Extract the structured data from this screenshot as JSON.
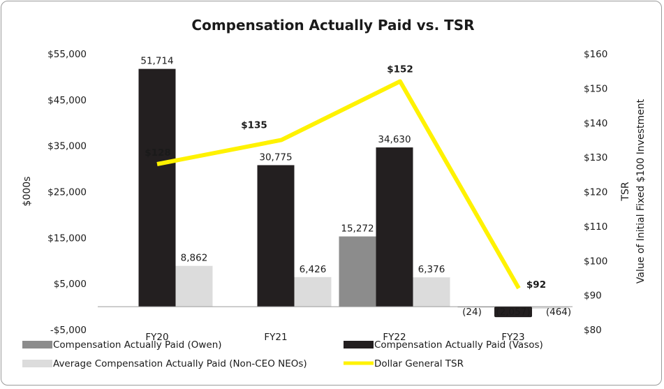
{
  "chart_data": {
    "type": "bar",
    "title": "Compensation Actually Paid vs. TSR",
    "categories": [
      "FY20",
      "FY21",
      "FY22",
      "FY23"
    ],
    "ylabel": "$000s",
    "y2label_line1": "TSR",
    "y2label_line2": "Value of Initial Fixed $100 Investment",
    "ylim": [
      -5000,
      55000
    ],
    "y_ticks": [
      55000,
      45000,
      35000,
      25000,
      15000,
      5000,
      -5000
    ],
    "y_tick_labels": [
      "$55,000",
      "$45,000",
      "$35,000",
      "$25,000",
      "$15,000",
      "$5,000",
      "-$5,000"
    ],
    "y2lim": [
      80,
      160
    ],
    "y2_ticks": [
      160,
      150,
      140,
      130,
      120,
      110,
      100,
      90,
      80
    ],
    "y2_tick_labels": [
      "$160",
      "$150",
      "$140",
      "$130",
      "$120",
      "$110",
      "$100",
      "$90",
      "$80"
    ],
    "grid": false,
    "series": [
      {
        "name": "Compensation Actually Paid (Owen)",
        "color": "#8c8c8c",
        "values": [
          null,
          null,
          15272,
          -24
        ],
        "labels": [
          "",
          "",
          "15,272",
          "(24)"
        ]
      },
      {
        "name": "Compensation Actually Paid (Vasos)",
        "color": "#231f20",
        "values": [
          51714,
          30775,
          34630,
          -2057
        ],
        "labels": [
          "51,714",
          "30,775",
          "34,630",
          "(2,057)"
        ]
      },
      {
        "name": "Average Compensation Actually Paid (Non-CEO NEOs)",
        "color": "#dcdcdc",
        "values": [
          8862,
          6426,
          6376,
          -464
        ],
        "labels": [
          "8,862",
          "6,426",
          "6,376",
          "(464)"
        ]
      }
    ],
    "line_series": {
      "name": "Dollar General TSR",
      "color": "#fff200",
      "axis": "right",
      "values": [
        128,
        135,
        152,
        92
      ],
      "labels": [
        "$128",
        "$135",
        "$152",
        "$92"
      ],
      "label_colors": [
        "#fff200",
        "#8c8c8c",
        "#8c8c8c",
        "#8c8c8c"
      ]
    },
    "legend_position": "bottom"
  }
}
